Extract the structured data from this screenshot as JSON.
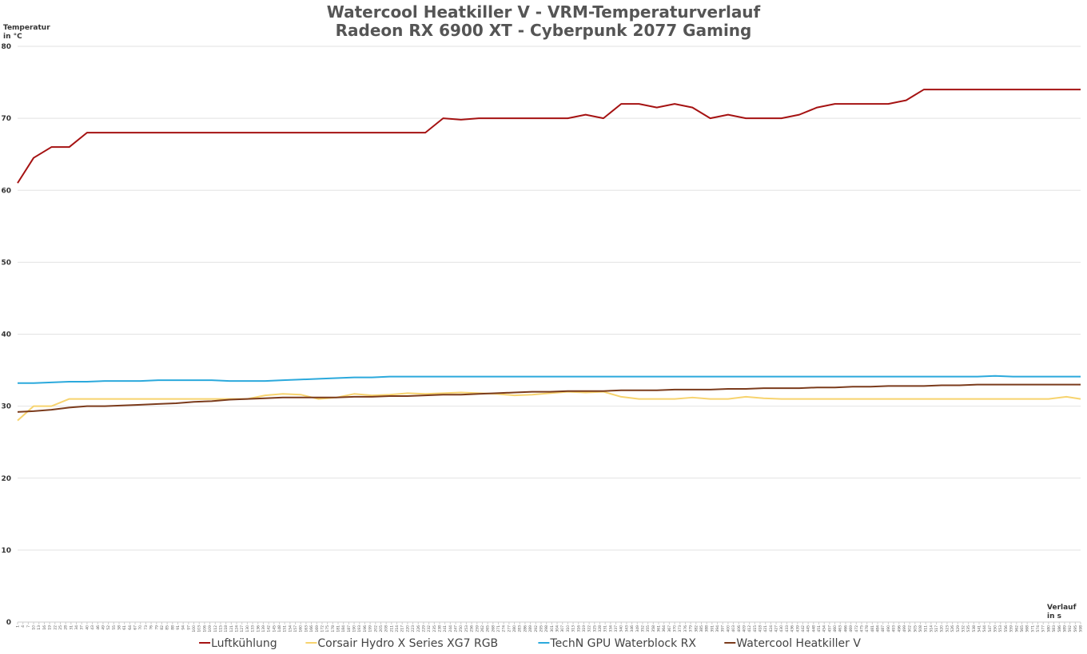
{
  "chart_data": {
    "type": "line",
    "title": "Watercool Heatkiller V - VRM-Temperaturverlauf",
    "subtitle": "Radeon RX 6900 XT - Cyberpunk 2077 Gaming",
    "y_label": [
      "Temperatur",
      "in °C"
    ],
    "x_label": [
      "Verlauf",
      "in s"
    ],
    "x": [
      1,
      10,
      20,
      30,
      40,
      50,
      60,
      70,
      80,
      90,
      100,
      110,
      120,
      130,
      140,
      150,
      160,
      170,
      180,
      190,
      200,
      210,
      220,
      230,
      240,
      250,
      260,
      270,
      280,
      290,
      300,
      310,
      320,
      330,
      340,
      350,
      360,
      370,
      380,
      390,
      400,
      410,
      420,
      430,
      440,
      450,
      460,
      470,
      480,
      490,
      500,
      510,
      520,
      530,
      540,
      550,
      560,
      570,
      580,
      590,
      598
    ],
    "series": [
      {
        "name": "Luftkühlung",
        "color": "#a51212",
        "values": [
          61,
          64.5,
          66,
          66,
          68,
          68,
          68,
          68,
          68,
          68,
          68,
          68,
          68,
          68,
          68,
          68,
          68,
          68,
          68,
          68,
          68,
          68,
          68,
          68,
          70,
          69.8,
          70,
          70,
          70,
          70,
          70,
          70,
          70.5,
          70,
          72,
          72,
          71.5,
          72,
          71.5,
          70,
          70.5,
          70,
          70,
          70,
          70.5,
          71.5,
          72,
          72,
          72,
          72,
          72.5,
          74,
          74,
          74,
          74,
          74,
          74,
          74,
          74,
          74,
          74
        ]
      },
      {
        "name": "Corsair Hydro X Series XG7 RGB",
        "color": "#f7d36e",
        "values": [
          28,
          30,
          30,
          31,
          31,
          31,
          31,
          31,
          31,
          31,
          31,
          31,
          31,
          31,
          31.5,
          31.7,
          31.6,
          31,
          31.2,
          31.7,
          31.5,
          31.6,
          31.8,
          31.7,
          31.8,
          31.9,
          31.8,
          31.7,
          31.5,
          31.6,
          31.8,
          32,
          31.9,
          32,
          31.3,
          31,
          31,
          31,
          31.2,
          31,
          31,
          31.3,
          31.1,
          31,
          31,
          31,
          31,
          31,
          31,
          31,
          31,
          31,
          31,
          31,
          31,
          31,
          31,
          31,
          31,
          31.3,
          31
        ]
      },
      {
        "name": "TechN GPU Waterblock RX",
        "color": "#2ba9dc",
        "values": [
          33.2,
          33.2,
          33.3,
          33.4,
          33.4,
          33.5,
          33.5,
          33.5,
          33.6,
          33.6,
          33.6,
          33.6,
          33.5,
          33.5,
          33.5,
          33.6,
          33.7,
          33.8,
          33.9,
          34,
          34,
          34.1,
          34.1,
          34.1,
          34.1,
          34.1,
          34.1,
          34.1,
          34.1,
          34.1,
          34.1,
          34.1,
          34.1,
          34.1,
          34.1,
          34.1,
          34.1,
          34.1,
          34.1,
          34.1,
          34.1,
          34.1,
          34.1,
          34.1,
          34.1,
          34.1,
          34.1,
          34.1,
          34.1,
          34.1,
          34.1,
          34.1,
          34.1,
          34.1,
          34.1,
          34.2,
          34.1,
          34.1,
          34.1,
          34.1,
          34.1
        ]
      },
      {
        "name": "Watercool Heatkiller V",
        "color": "#7b3b1c",
        "values": [
          29.2,
          29.3,
          29.5,
          29.8,
          30,
          30,
          30.1,
          30.2,
          30.3,
          30.4,
          30.6,
          30.7,
          30.9,
          31,
          31.1,
          31.2,
          31.2,
          31.2,
          31.2,
          31.3,
          31.3,
          31.4,
          31.4,
          31.5,
          31.6,
          31.6,
          31.7,
          31.8,
          31.9,
          32,
          32,
          32.1,
          32.1,
          32.1,
          32.2,
          32.2,
          32.2,
          32.3,
          32.3,
          32.3,
          32.4,
          32.4,
          32.5,
          32.5,
          32.5,
          32.6,
          32.6,
          32.7,
          32.7,
          32.8,
          32.8,
          32.8,
          32.9,
          32.9,
          33,
          33,
          33,
          33,
          33,
          33,
          33
        ]
      }
    ],
    "xlim": [
      1,
      598
    ],
    "ylim": [
      0,
      80
    ],
    "yticks": [
      0,
      10,
      20,
      30,
      40,
      50,
      60,
      70,
      80
    ],
    "xticks": [
      1,
      4,
      7,
      10,
      13,
      16,
      19,
      22,
      25,
      28,
      31,
      34,
      37,
      40,
      43,
      46,
      49,
      52,
      55,
      58,
      61,
      64,
      67,
      70,
      73,
      76,
      79,
      82,
      85,
      88,
      91,
      94,
      97,
      100,
      103,
      106,
      109,
      112,
      115,
      118,
      121,
      124,
      127,
      130,
      133,
      136,
      139,
      142,
      145,
      148,
      151,
      154,
      157,
      160,
      163,
      166,
      169,
      172,
      175,
      178,
      181,
      184,
      187,
      190,
      193,
      196,
      199,
      202,
      205,
      208,
      211,
      214,
      217,
      220,
      223,
      226,
      229,
      232,
      235,
      238,
      241,
      244,
      247,
      250,
      253,
      256,
      259,
      262,
      265,
      268,
      271,
      274,
      277,
      280,
      283,
      286,
      289,
      292,
      295,
      298,
      301,
      304,
      307,
      310,
      313,
      316,
      319,
      322,
      325,
      328,
      331,
      334,
      337,
      340,
      343,
      346,
      349,
      352,
      355,
      358,
      361,
      364,
      367,
      370,
      373,
      376,
      379,
      382,
      385,
      388,
      391,
      394,
      397,
      400,
      403,
      406,
      409,
      412,
      415,
      418,
      421,
      424,
      427,
      430,
      433,
      436,
      439,
      442,
      445,
      448,
      451,
      454,
      457,
      460,
      463,
      466,
      469,
      472,
      475,
      478,
      481,
      484,
      487,
      490,
      493,
      496,
      499,
      502,
      505,
      508,
      511,
      514,
      517,
      520,
      523,
      526,
      529,
      532,
      535,
      538,
      541,
      544,
      547,
      550,
      553,
      556,
      559,
      562,
      565,
      568,
      571,
      574,
      577,
      580,
      583,
      586,
      589,
      592,
      595,
      598
    ],
    "grid": true,
    "legend": "bottom"
  }
}
